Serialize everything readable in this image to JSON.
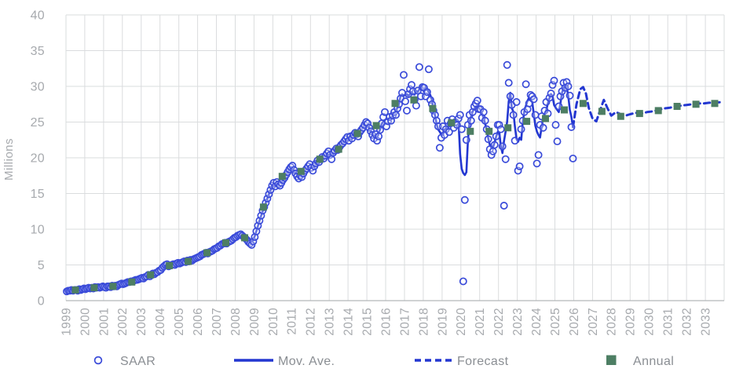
{
  "chart_data": {
    "type": "line",
    "ylabel": "Millions",
    "ylim": [
      0,
      40
    ],
    "ytick_step": 5,
    "x_tick_years": [
      1999,
      2000,
      2001,
      2002,
      2003,
      2004,
      2005,
      2006,
      2007,
      2008,
      2009,
      2010,
      2011,
      2012,
      2013,
      2014,
      2015,
      2016,
      2017,
      2018,
      2019,
      2020,
      2021,
      2022,
      2023,
      2024,
      2025,
      2026,
      2027,
      2028,
      2029,
      2030,
      2031,
      2032,
      2033
    ],
    "grid": "both",
    "legend_position": "bottom",
    "series": [
      {
        "id": "saar",
        "name": "SAAR",
        "type": "scatter",
        "marker": "open-circle",
        "color": "#3a4bd9"
      },
      {
        "id": "mov_ave",
        "name": "Mov. Ave.",
        "type": "line",
        "style": "solid",
        "color": "#2337d1",
        "smoothing_window": 5
      },
      {
        "id": "forecast",
        "name": "Forecast",
        "type": "line",
        "style": "dashed",
        "color": "#2337d1"
      },
      {
        "id": "annual",
        "name": "Annual",
        "type": "scatter",
        "marker": "filled-square",
        "color": "#4d7e63"
      }
    ],
    "saar_monthly": {
      "start_year": 1999,
      "values_by_year": [
        [
          1.3,
          1.4,
          1.4,
          1.5,
          1.4,
          1.5,
          1.5,
          1.4,
          1.6,
          1.5,
          1.6,
          1.7
        ],
        [
          1.6,
          1.7,
          1.8,
          1.7,
          1.8,
          1.7,
          1.9,
          1.8,
          1.9,
          1.8,
          1.9,
          2.0
        ],
        [
          1.9,
          1.8,
          2.0,
          2.0,
          1.9,
          2.1,
          2.0,
          2.1,
          2.0,
          2.2,
          2.3,
          2.4
        ],
        [
          2.3,
          2.4,
          2.5,
          2.6,
          2.6,
          2.7,
          2.7,
          2.8,
          2.9,
          2.9,
          3.0,
          3.1
        ],
        [
          3.2,
          3.1,
          3.3,
          3.4,
          3.6,
          3.4,
          3.6,
          3.8,
          3.7,
          3.9,
          4.0,
          4.2
        ],
        [
          4.3,
          4.6,
          4.8,
          5.0,
          5.1,
          4.8,
          4.9,
          5.0,
          5.1,
          5.0,
          5.2,
          5.3
        ],
        [
          5.2,
          5.3,
          5.4,
          5.5,
          5.4,
          5.6,
          5.5,
          5.7,
          5.6,
          5.8,
          5.9,
          6.0
        ],
        [
          6.1,
          6.2,
          6.4,
          6.5,
          6.6,
          6.7,
          6.6,
          6.8,
          6.9,
          7.0,
          7.2,
          7.3
        ],
        [
          7.4,
          7.6,
          7.7,
          7.9,
          8.0,
          8.1,
          8.0,
          8.2,
          8.3,
          8.4,
          8.6,
          8.8
        ],
        [
          8.9,
          9.1,
          9.2,
          9.3,
          9.1,
          8.9,
          8.7,
          8.5,
          8.2,
          8.0,
          7.8,
          8.3
        ],
        [
          8.9,
          9.7,
          10.5,
          11.2,
          11.9,
          12.6,
          13.1,
          13.7,
          14.3,
          14.9,
          15.5,
          16.1
        ],
        [
          16.5,
          16.0,
          16.6,
          16.3,
          16.1,
          16.5,
          16.9,
          17.2,
          17.6,
          18.0,
          18.4,
          18.7
        ],
        [
          18.9,
          18.3,
          17.8,
          17.4,
          17.1,
          17.5,
          17.3,
          17.8,
          18.2,
          18.5,
          18.8,
          19.1
        ],
        [
          18.6,
          18.2,
          18.8,
          19.2,
          19.6,
          19.4,
          19.8,
          20.1,
          19.9,
          20.3,
          20.6,
          20.9
        ],
        [
          20.4,
          19.8,
          20.7,
          21.0,
          21.3,
          21.1,
          21.5,
          21.8,
          22.0,
          22.3,
          22.6,
          22.9
        ],
        [
          22.4,
          23.0,
          22.7,
          23.2,
          23.5,
          23.3,
          23.0,
          23.6,
          23.9,
          24.2,
          24.6,
          25.0
        ],
        [
          24.8,
          24.2,
          23.7,
          23.2,
          22.7,
          23.3,
          22.4,
          23.0,
          23.9,
          24.8,
          25.7,
          26.4
        ],
        [
          24.4,
          25.1,
          25.7,
          25.2,
          25.9,
          26.4,
          26.0,
          26.9,
          27.5,
          28.3,
          29.1,
          31.6
        ],
        [
          27.9,
          26.6,
          28.9,
          29.6,
          30.2,
          29.3,
          28.1,
          27.3,
          29.4,
          32.7,
          28.6,
          29.9
        ],
        [
          29.8,
          28.6,
          29.2,
          32.4,
          28.1,
          27.5,
          26.6,
          26.0,
          25.2,
          24.4,
          21.4,
          22.8
        ],
        [
          24.4,
          23.2,
          24.0,
          25.2,
          23.6,
          24.8,
          25.4,
          24.2,
          25.0,
          24.6,
          25.5,
          26.0
        ],
        [
          24.0,
          2.7,
          14.1,
          22.5,
          24.6,
          26.0,
          25.2,
          26.4,
          27.2,
          27.6,
          28.0,
          26.8
        ],
        [
          26.8,
          25.6,
          26.4,
          25.2,
          24.0,
          22.6,
          21.2,
          20.4,
          20.9,
          21.8,
          23.0,
          24.6
        ],
        [
          24.6,
          24.0,
          21.6,
          13.3,
          19.8,
          33.0,
          30.5,
          28.6,
          27.4,
          26.0,
          22.4,
          27.8
        ],
        [
          18.2,
          18.8,
          24.0,
          25.2,
          26.4,
          30.3,
          26.8,
          27.6,
          28.8,
          28.6,
          28.2,
          26.0
        ],
        [
          19.2,
          20.4,
          24.6,
          25.8,
          24.2,
          26.6,
          27.8,
          26.2,
          28.4,
          29.0,
          30.2,
          30.8
        ],
        [
          24.6,
          22.3,
          27.2,
          28.6,
          29.3,
          30.5,
          29.8,
          30.6,
          30.0,
          28.7,
          24.3,
          19.9
        ]
      ]
    },
    "forecast_points": [
      [
        2026.0,
        25.0
      ],
      [
        2026.15,
        27.5
      ],
      [
        2026.35,
        29.6
      ],
      [
        2026.5,
        29.9
      ],
      [
        2026.65,
        29.0
      ],
      [
        2026.8,
        27.0
      ],
      [
        2027.0,
        25.5
      ],
      [
        2027.2,
        25.1
      ],
      [
        2027.45,
        27.0
      ],
      [
        2027.6,
        28.1
      ],
      [
        2027.8,
        26.9
      ],
      [
        2028.0,
        25.9
      ],
      [
        2028.25,
        26.4
      ],
      [
        2028.5,
        26.1
      ],
      [
        2028.75,
        25.9
      ],
      [
        2029.0,
        26.1
      ],
      [
        2029.3,
        26.3
      ],
      [
        2029.6,
        26.2
      ],
      [
        2029.9,
        26.4
      ],
      [
        2030.2,
        26.5
      ],
      [
        2030.5,
        26.7
      ],
      [
        2030.8,
        26.9
      ],
      [
        2031.1,
        27.0
      ],
      [
        2031.4,
        27.2
      ],
      [
        2031.7,
        27.3
      ],
      [
        2032.0,
        27.4
      ],
      [
        2032.3,
        27.5
      ],
      [
        2032.6,
        27.6
      ],
      [
        2032.9,
        27.6
      ],
      [
        2033.2,
        27.7
      ],
      [
        2033.5,
        27.7
      ],
      [
        2033.9,
        27.8
      ]
    ],
    "annual": {
      "years": [
        1999,
        2000,
        2001,
        2002,
        2003,
        2004,
        2005,
        2006,
        2007,
        2008,
        2009,
        2010,
        2011,
        2012,
        2013,
        2014,
        2015,
        2016,
        2017,
        2018,
        2019,
        2020,
        2021,
        2022,
        2023,
        2024,
        2025,
        2026,
        2027,
        2028,
        2029,
        2030,
        2031,
        2032,
        2033
      ],
      "values": [
        1.5,
        1.8,
        2.0,
        2.6,
        3.6,
        4.9,
        5.5,
        6.7,
        8.1,
        8.8,
        13.1,
        17.4,
        18.1,
        19.8,
        21.2,
        23.4,
        24.5,
        27.6,
        28.1,
        26.9,
        24.9,
        23.7,
        23.7,
        24.2,
        25.1,
        25.5,
        26.7,
        27.6,
        26.5,
        25.8,
        26.2,
        26.6,
        27.2,
        27.5,
        27.6
      ]
    }
  },
  "colors": {
    "line_blue": "#2337d1",
    "dot_blue": "#3a4bd9",
    "annual_green": "#4d7e63",
    "gridline": "#dadcde",
    "axis_text": "#a7aaae",
    "legend_text": "#8a8e93",
    "background": "#ffffff"
  }
}
